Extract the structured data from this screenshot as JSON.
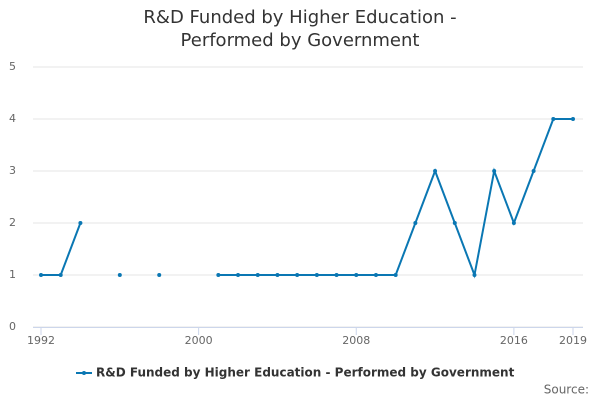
{
  "chart_data": {
    "type": "line",
    "title": "R&D Funded by Higher Education - Performed by Government",
    "x": [
      1992,
      1993,
      1994,
      1995,
      1996,
      1997,
      1998,
      1999,
      2000,
      2001,
      2002,
      2003,
      2004,
      2005,
      2006,
      2007,
      2008,
      2009,
      2010,
      2011,
      2012,
      2013,
      2014,
      2015,
      2016,
      2017,
      2018,
      2019
    ],
    "series": [
      {
        "name": "R&D Funded by Higher Education - Performed by Government",
        "color": "#0a77b3",
        "values": [
          1,
          1,
          2,
          null,
          1,
          null,
          1,
          null,
          null,
          1,
          1,
          1,
          1,
          1,
          1,
          1,
          1,
          1,
          1,
          2,
          3,
          2,
          1,
          3,
          2,
          3,
          4,
          4
        ]
      }
    ],
    "xlim": [
      1992,
      2019
    ],
    "xticks": [
      1992,
      2000,
      2008,
      2016,
      2019
    ],
    "ylim": [
      0,
      5
    ],
    "yticks": [
      0,
      1,
      2,
      3,
      4,
      5
    ],
    "grid": true,
    "legend": "bottom",
    "source": "Source:"
  }
}
